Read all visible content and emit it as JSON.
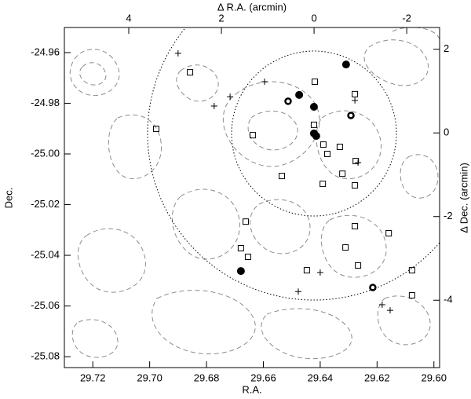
{
  "chart_data": {
    "type": "scatter",
    "xlabel": "R.A.",
    "ylabel": "Dec.",
    "x2label": "Δ R.A. (arcmin)",
    "y2label": "Δ Dec. (arcmin)",
    "xlim": [
      29.73,
      29.598
    ],
    "xticks": [
      29.72,
      {
        "value": 29.7,
        "label": "29.70"
      },
      29.68,
      29.66,
      29.64,
      29.62,
      {
        "value": 29.6,
        "label": "29.60"
      }
    ],
    "ylim": [
      -24.9501,
      -25.0843
    ],
    "yticks": [
      -24.96,
      -24.98,
      {
        "value": -25,
        "label": "-25.00"
      },
      -25.02,
      -25.04,
      -25.06,
      -25.08
    ],
    "x2lim": [
      5.39,
      -2.71
    ],
    "x2ticks": [
      4,
      2,
      0,
      -2
    ],
    "y2lim": [
      2.52,
      -5.61
    ],
    "y2ticks": [
      2,
      0,
      -2,
      -4
    ],
    "series": [
      {
        "marker": "filled-circle",
        "color": "#000000",
        "x": [
          29.6309,
          29.6474,
          29.6422,
          29.6422,
          29.6414,
          29.6679
        ],
        "values": [
          -24.9647,
          -24.9767,
          -24.9814,
          -24.9919,
          -24.9929,
          -25.0462
        ]
      },
      {
        "marker": "open-circle",
        "color": "#000000",
        "x": [
          29.6513,
          29.6292,
          29.6215
        ],
        "values": [
          -24.9792,
          -24.9848,
          -25.0527
        ]
      },
      {
        "marker": "square",
        "color": "#000000",
        "x": [
          29.6858,
          29.6419,
          29.6278,
          29.6977,
          29.6637,
          29.6422,
          29.6389,
          29.6331,
          29.6375,
          29.6275,
          29.6535,
          29.6322,
          29.6391,
          29.6278,
          29.6662,
          29.6278,
          29.6159,
          29.6679,
          29.6654,
          29.6311,
          29.6267,
          29.6447,
          29.6077,
          29.6077
        ],
        "values": [
          -24.9678,
          -24.9715,
          -24.9764,
          -24.9901,
          -24.9926,
          -24.9885,
          -24.9963,
          -24.9972,
          -25.0,
          -25.0028,
          -25.0087,
          -25.0078,
          -25.0118,
          -25.0124,
          -25.0267,
          -25.0285,
          -25.0313,
          -25.0372,
          -25.0406,
          -25.0369,
          -25.044,
          -25.0459,
          -25.0459,
          -25.0558
        ]
      },
      {
        "marker": "plus",
        "color": "#000000",
        "x": [
          29.69,
          29.6596,
          29.6717,
          29.6773,
          29.6278,
          29.6267,
          29.64,
          29.6477,
          29.6182,
          29.6154
        ],
        "values": [
          -24.9603,
          -24.9715,
          -24.9774,
          -24.9811,
          -24.9789,
          -25.0034,
          -25.0468,
          -25.0543,
          -25.0595,
          -25.0617
        ]
      }
    ]
  }
}
